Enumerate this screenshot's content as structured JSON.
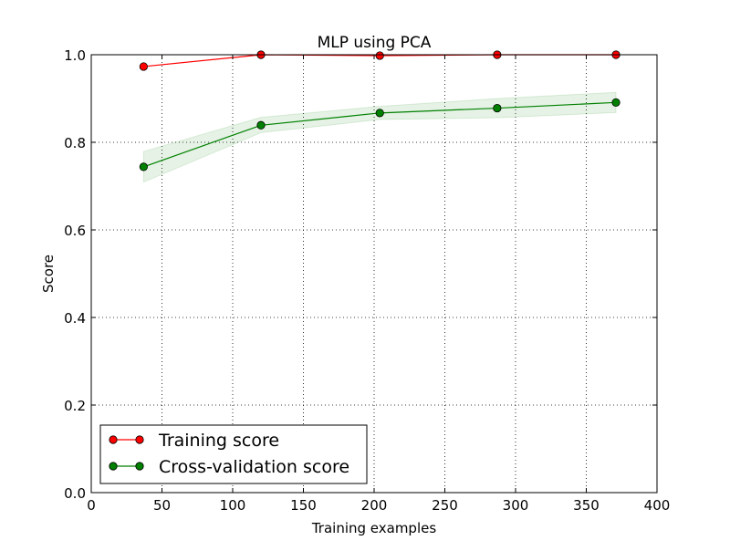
{
  "chart_data": {
    "type": "line",
    "title": "MLP using PCA",
    "xlabel": "Training examples",
    "ylabel": "Score",
    "xlim": [
      0,
      400
    ],
    "ylim": [
      0.0,
      1.0
    ],
    "xticks": [
      0,
      50,
      100,
      150,
      200,
      250,
      300,
      350,
      400
    ],
    "yticks": [
      0.0,
      0.2,
      0.4,
      0.6,
      0.8,
      1.0
    ],
    "grid": true,
    "legend_position": "lower-left",
    "series": [
      {
        "name": "Training score",
        "color": "#ff0000",
        "x": [
          37,
          120,
          204,
          287,
          371
        ],
        "y": [
          0.973,
          1.0,
          0.998,
          1.0,
          1.0
        ],
        "band_lower": [
          0.973,
          1.0,
          0.996,
          1.0,
          1.0
        ],
        "band_upper": [
          0.973,
          1.0,
          1.0,
          1.0,
          1.0
        ]
      },
      {
        "name": "Cross-validation score",
        "color": "#008000",
        "x": [
          37,
          120,
          204,
          287,
          371
        ],
        "y": [
          0.744,
          0.839,
          0.867,
          0.878,
          0.891
        ],
        "band_lower": [
          0.709,
          0.822,
          0.852,
          0.856,
          0.868
        ],
        "band_upper": [
          0.779,
          0.857,
          0.882,
          0.9,
          0.914
        ]
      }
    ]
  }
}
